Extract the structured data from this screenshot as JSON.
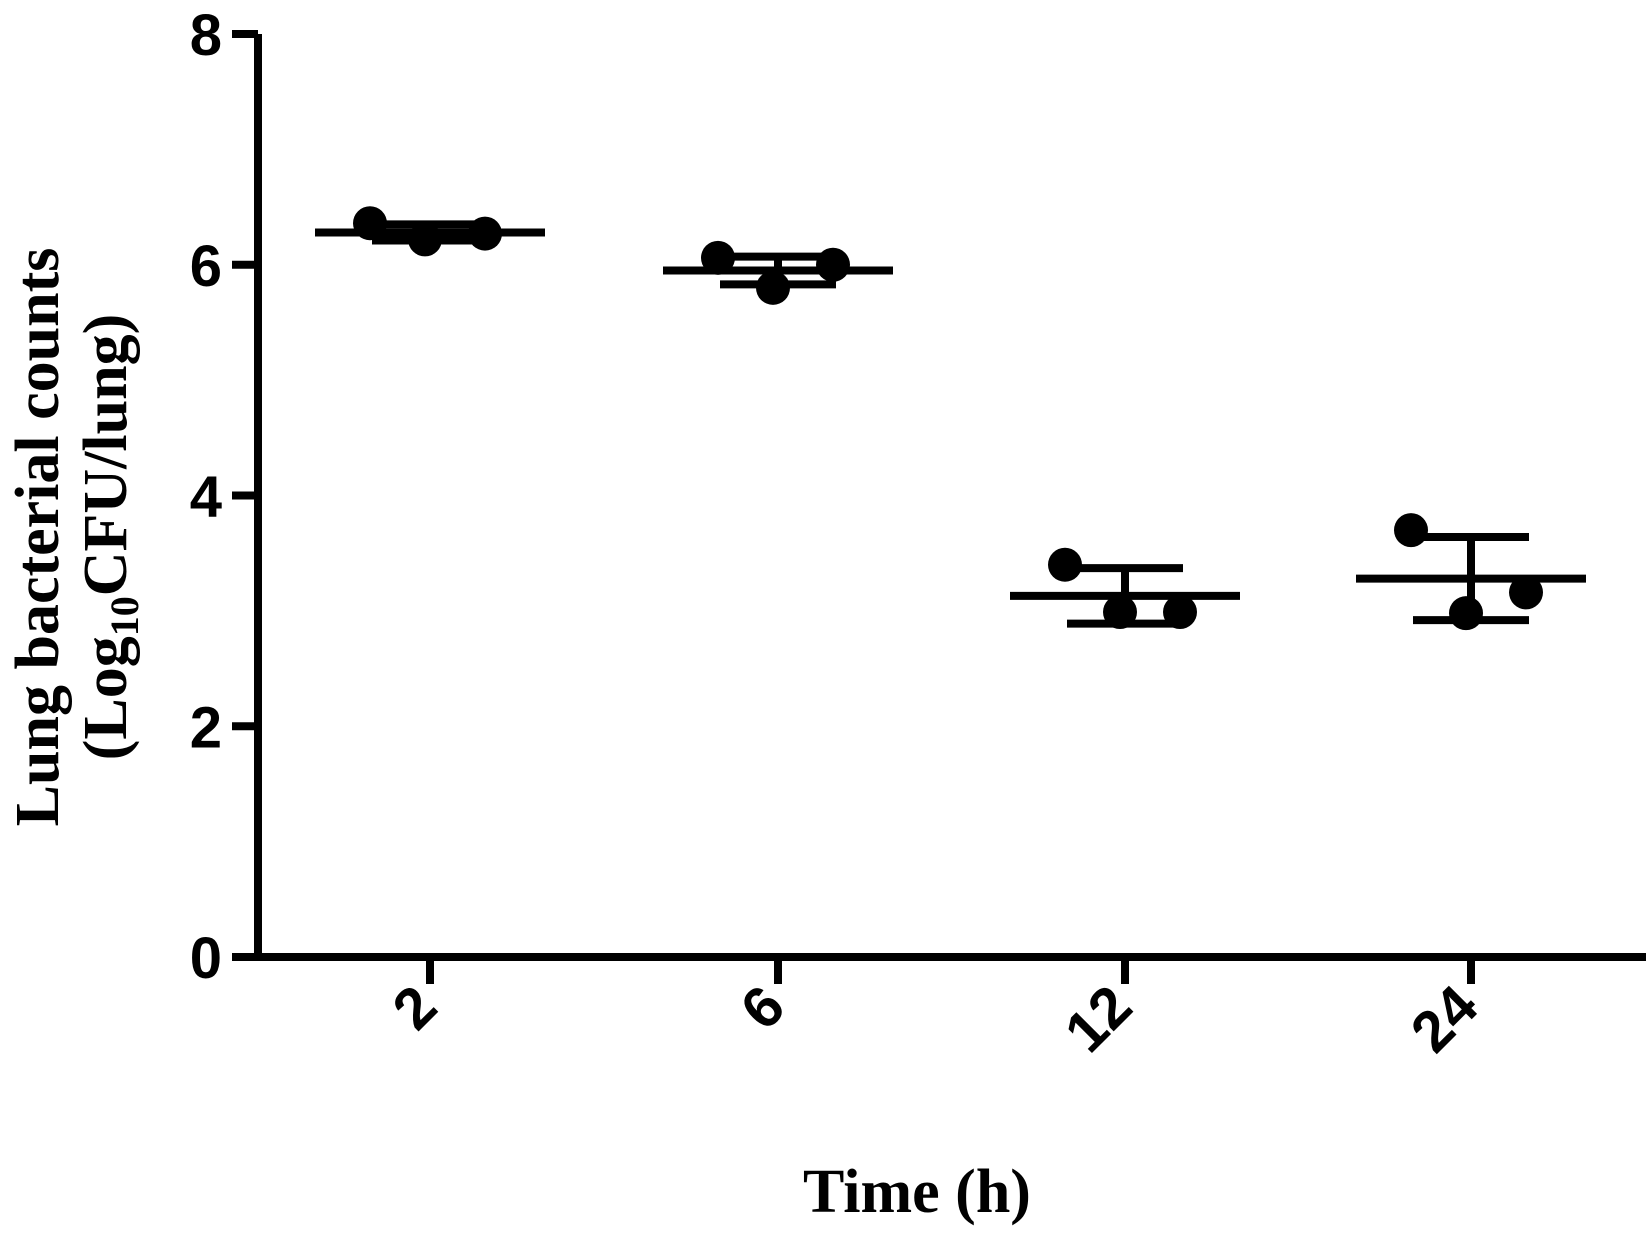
{
  "chart_data": {
    "type": "scatter",
    "subtype": "scatter-dot-plot-with-mean-and-sd",
    "x_axis": {
      "title": "Time (h)",
      "categories": [
        "2",
        "6",
        "12",
        "24"
      ],
      "tick_label_rotation_deg": -45
    },
    "y_axis": {
      "title_line1": "Lung bacterial counts",
      "title_line2_prefix": "(Log",
      "title_line2_subscript": "10",
      "title_line2_suffix": "CFU/lung)",
      "ylim": [
        0,
        8
      ],
      "ticks": [
        0,
        2,
        4,
        6,
        8
      ],
      "tick_labels": [
        "0",
        "2",
        "4",
        "6",
        "8"
      ]
    },
    "groups": [
      {
        "category": "2",
        "points": [
          6.36,
          6.22,
          6.27
        ],
        "mean": 6.28,
        "sd": 0.07
      },
      {
        "category": "6",
        "points": [
          6.06,
          5.8,
          6.0
        ],
        "mean": 5.95,
        "sd": 0.12
      },
      {
        "category": "12",
        "points": [
          3.4,
          2.99,
          2.99
        ],
        "mean": 3.13,
        "sd": 0.24
      },
      {
        "category": "24",
        "points": [
          3.7,
          2.98,
          3.16
        ],
        "mean": 3.28,
        "sd": 0.36
      }
    ],
    "grid": false,
    "legend": "none",
    "colors": {
      "marker": "#000000",
      "axis": "#000000",
      "background": "#ffffff"
    }
  }
}
